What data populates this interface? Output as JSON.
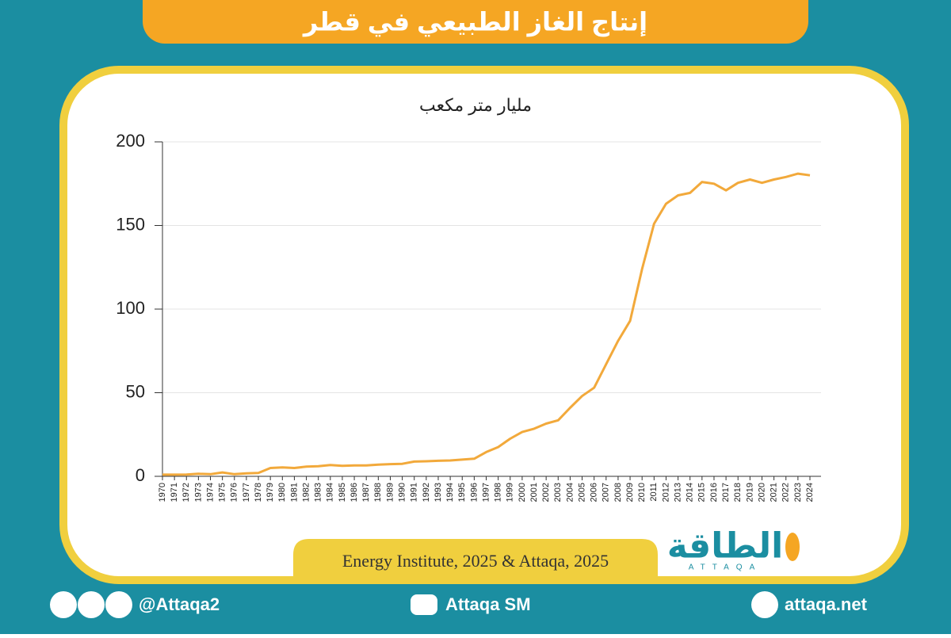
{
  "header": {
    "title": "إنتاج الغاز الطبيعي في قطر"
  },
  "chart_data": {
    "type": "line",
    "y_label": "مليار متر مكعب",
    "categories": [
      "1970",
      "1971",
      "1972",
      "1973",
      "1974",
      "1975",
      "1976",
      "1977",
      "1978",
      "1979",
      "1980",
      "1981",
      "1982",
      "1983",
      "1984",
      "1985",
      "1986",
      "1987",
      "1988",
      "1989",
      "1990",
      "1991",
      "1992",
      "1993",
      "1994",
      "1995",
      "1996",
      "1997",
      "1998",
      "1999",
      "2000",
      "2001",
      "2002",
      "2003",
      "2004",
      "2005",
      "2006",
      "2007",
      "2008",
      "2009",
      "2010",
      "2011",
      "2012",
      "2013",
      "2014",
      "2015",
      "2016",
      "2017",
      "2018",
      "2019",
      "2020",
      "2021",
      "2022",
      "2023",
      "2024"
    ],
    "values": [
      1.0,
      1.0,
      1.1,
      1.5,
      1.3,
      2.3,
      1.3,
      1.8,
      2.0,
      5.0,
      5.3,
      5.0,
      5.8,
      6.0,
      6.8,
      6.3,
      6.5,
      6.5,
      7.0,
      7.3,
      7.5,
      8.8,
      9.0,
      9.3,
      9.5,
      10.0,
      10.5,
      14.5,
      17.5,
      22.5,
      26.5,
      28.5,
      31.5,
      33.5,
      41,
      48,
      53,
      67,
      81,
      93,
      124,
      151,
      163,
      168,
      169.5,
      176,
      175,
      171,
      175.5,
      177.5,
      175.5,
      177.5,
      179,
      181,
      180
    ],
    "color": "#f2a93b",
    "ylim": [
      0,
      200
    ],
    "yticks": [
      0,
      50,
      100,
      150,
      200
    ],
    "grid": true
  },
  "source": "Energy Institute, 2025 & Attaqa, 2025",
  "logo": {
    "arabic": "الطاقة",
    "latin": "ATTAQA"
  },
  "footer": {
    "handle": "@Attaqa2",
    "youtube": "Attaqa SM",
    "website": "attaqa.net"
  }
}
